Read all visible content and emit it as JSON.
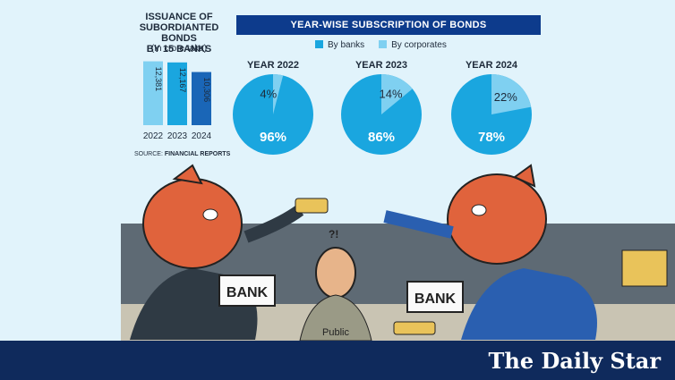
{
  "bar_chart": {
    "title_lines": [
      "ISSUANCE OF",
      "SUBORDIANTED BONDS",
      "BY 15 BANKS"
    ],
    "unit": "(In crore taka)",
    "source_prefix": "SOURCE:",
    "source_name": "FINANCIAL REPORTS"
  },
  "pies": {
    "header": "YEAR-WISE SUBSCRIPTION OF BONDS",
    "legend": [
      {
        "label": "By banks",
        "color": "#1aa6df"
      },
      {
        "label": "By corporates",
        "color": "#7fd0f1"
      }
    ]
  },
  "chart_data": [
    {
      "type": "bar",
      "categories": [
        "2022",
        "2023",
        "2024"
      ],
      "values": [
        12381,
        12167,
        10306
      ],
      "value_labels": [
        "12,381",
        "12,167",
        "10,306"
      ],
      "colors": [
        "#7fd0f1",
        "#1aa6df",
        "#1a66b7"
      ]
    },
    {
      "type": "pie",
      "title": "YEAR 2022",
      "labels": [
        "By banks",
        "By corporates"
      ],
      "values": [
        96,
        4
      ],
      "value_labels": [
        "96%",
        "4%"
      ]
    },
    {
      "type": "pie",
      "title": "YEAR 2023",
      "labels": [
        "By banks",
        "By corporates"
      ],
      "values": [
        86,
        14
      ],
      "value_labels": [
        "86%",
        "14%"
      ]
    },
    {
      "type": "pie",
      "title": "YEAR 2024",
      "labels": [
        "By banks",
        "By corporates"
      ],
      "values": [
        78,
        22
      ],
      "value_labels": [
        "78%",
        "22%"
      ]
    }
  ],
  "illustration": {
    "left_sign": "BANK",
    "right_sign": "BANK",
    "center_label": "Public"
  },
  "brand": {
    "logo_text": "The Daily Star"
  }
}
